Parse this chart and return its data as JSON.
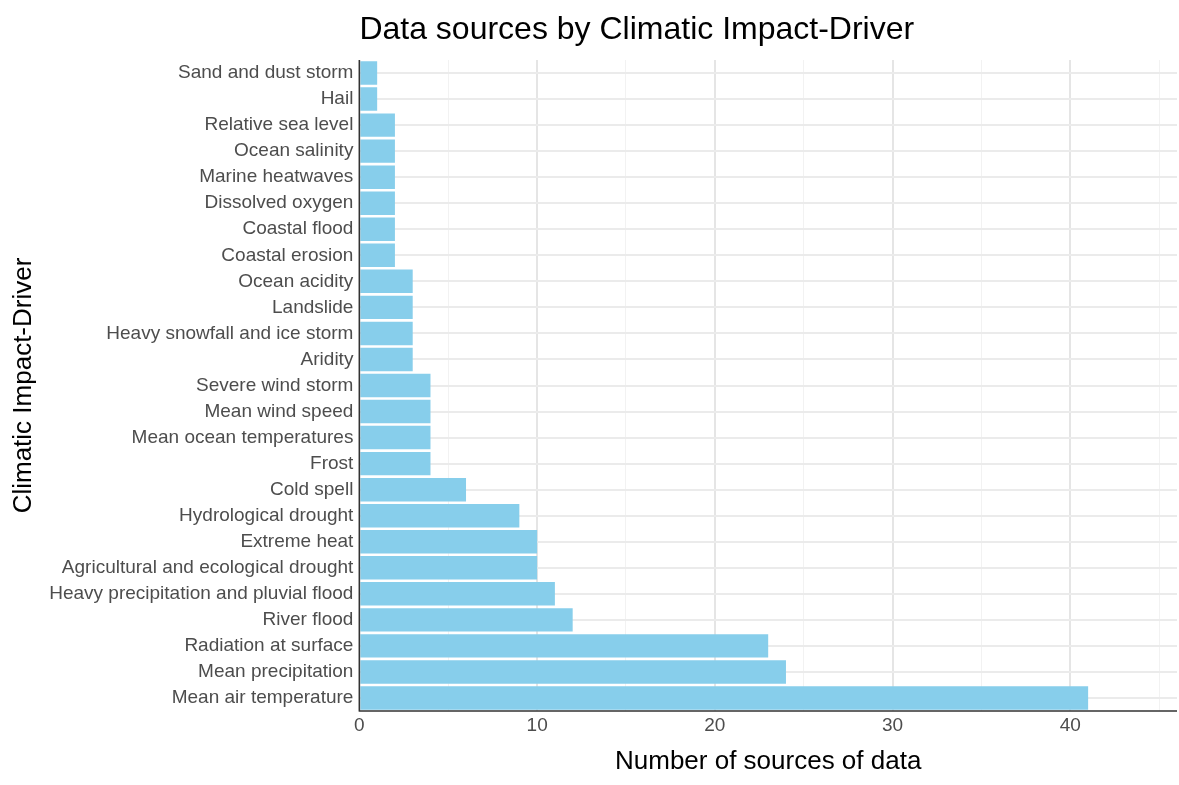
{
  "chart_data": {
    "type": "bar",
    "orientation": "horizontal",
    "title": "Data sources by Climatic Impact-Driver",
    "xlabel": "Number of sources of data",
    "ylabel": "Climatic Impact-Driver",
    "categories": [
      "Sand and dust storm",
      "Hail",
      "Relative sea level",
      "Ocean salinity",
      "Marine heatwaves",
      "Dissolved oxygen",
      "Coastal flood",
      "Coastal erosion",
      "Ocean acidity",
      "Landslide",
      "Heavy snowfall and ice storm",
      "Aridity",
      "Severe wind storm",
      "Mean wind speed",
      "Mean ocean temperatures",
      "Frost",
      "Cold spell",
      "Hydrological drought",
      "Extreme heat",
      "Agricultural and ecological drought",
      "Heavy precipitation and pluvial flood",
      "River flood",
      "Radiation at surface",
      "Mean precipitation",
      "Mean air temperature"
    ],
    "values": [
      1,
      1,
      2,
      2,
      2,
      2,
      2,
      2,
      3,
      3,
      3,
      3,
      4,
      4,
      4,
      4,
      6,
      9,
      10,
      10,
      11,
      12,
      23,
      24,
      41
    ],
    "color": "#87ceeb",
    "xlim": [
      0,
      46
    ],
    "xticks": [
      0,
      {
        "value": 5,
        "label": null
      },
      10,
      {
        "value": 15,
        "label": null
      },
      20,
      {
        "value": 25,
        "label": null
      },
      30,
      {
        "value": 35,
        "label": null
      },
      40,
      {
        "value": 45,
        "label": null
      }
    ],
    "grid": true,
    "legend": false
  }
}
